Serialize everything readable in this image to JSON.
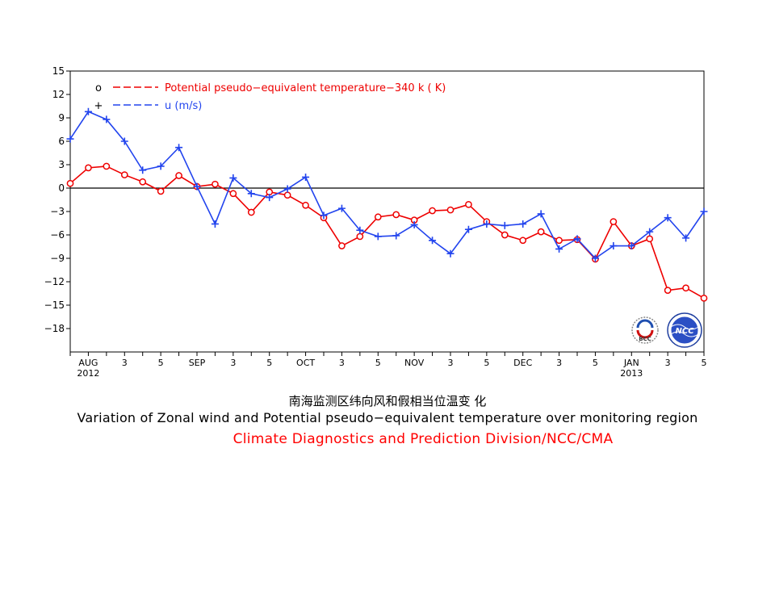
{
  "chart_data": {
    "type": "line",
    "ylim": [
      -21,
      15
    ],
    "yticks": [
      15,
      12,
      9,
      6,
      3,
      0,
      -3,
      -6,
      -9,
      -12,
      -15,
      -18
    ],
    "ytick_labels": [
      "15",
      "12",
      "9",
      "6",
      "3",
      "0",
      "−3",
      "−6",
      "−9",
      "−12",
      "−15",
      "−18"
    ],
    "xtick_labels": [
      {
        "i": 1,
        "label": "AUG"
      },
      {
        "i": 3,
        "label": "3"
      },
      {
        "i": 5,
        "label": "5"
      },
      {
        "i": 7,
        "label": "SEP"
      },
      {
        "i": 9,
        "label": "3"
      },
      {
        "i": 11,
        "label": "5"
      },
      {
        "i": 13,
        "label": "OCT"
      },
      {
        "i": 15,
        "label": "3"
      },
      {
        "i": 17,
        "label": "5"
      },
      {
        "i": 19,
        "label": "NOV"
      },
      {
        "i": 21,
        "label": "3"
      },
      {
        "i": 23,
        "label": "5"
      },
      {
        "i": 25,
        "label": "DEC"
      },
      {
        "i": 27,
        "label": "3"
      },
      {
        "i": 29,
        "label": "5"
      },
      {
        "i": 31,
        "label": "JAN"
      },
      {
        "i": 33,
        "label": "3"
      },
      {
        "i": 35,
        "label": "5"
      }
    ],
    "year_labels": [
      {
        "i": 1,
        "label": "2012"
      },
      {
        "i": 31,
        "label": "2013"
      }
    ],
    "zero_line": true,
    "legend_placement": "top-left",
    "series": [
      {
        "name": "Potential pseudo−equivalent temperature−340 k  ( K)",
        "legend_symbol": "o",
        "color": "#ee0000",
        "marker": "circle",
        "values": [
          0.6,
          2.6,
          2.8,
          1.7,
          0.8,
          -0.4,
          1.6,
          0.2,
          0.5,
          -0.7,
          -3.1,
          -0.5,
          -0.9,
          -2.2,
          -3.8,
          -7.4,
          -6.2,
          -3.7,
          -3.4,
          -4.1,
          -2.9,
          -2.8,
          -2.1,
          -4.3,
          -6.0,
          -6.7,
          -5.6,
          -6.7,
          -6.6,
          -9.1,
          -4.3,
          -7.4,
          -6.5,
          -13.1,
          -12.8,
          -14.1
        ]
      },
      {
        "name": "u  (m/s)",
        "legend_symbol": "+",
        "color": "#2244ee",
        "marker": "plus",
        "values": [
          6.3,
          9.8,
          8.8,
          6.0,
          2.3,
          2.8,
          5.2,
          0.2,
          -4.6,
          1.3,
          -0.7,
          -1.2,
          -0.1,
          1.4,
          -3.5,
          -2.6,
          -5.4,
          -6.2,
          -6.1,
          -4.7,
          -6.7,
          -8.4,
          -5.3,
          -4.6,
          -4.8,
          -4.6,
          -3.3,
          -7.8,
          -6.5,
          -9.0,
          -7.4,
          -7.4,
          -5.6,
          -3.8,
          -6.4,
          -3.0
        ]
      }
    ]
  },
  "titles": {
    "chinese": "南海监测区纬向风和假相当位温变 化",
    "english": "Variation of Zonal wind and Potential pseudo−equivalent temperature over monitoring region",
    "credit": "Climate Diagnostics and Prediction Division/NCC/CMA"
  },
  "logos": {
    "left": "BCC",
    "right": "NCC"
  }
}
